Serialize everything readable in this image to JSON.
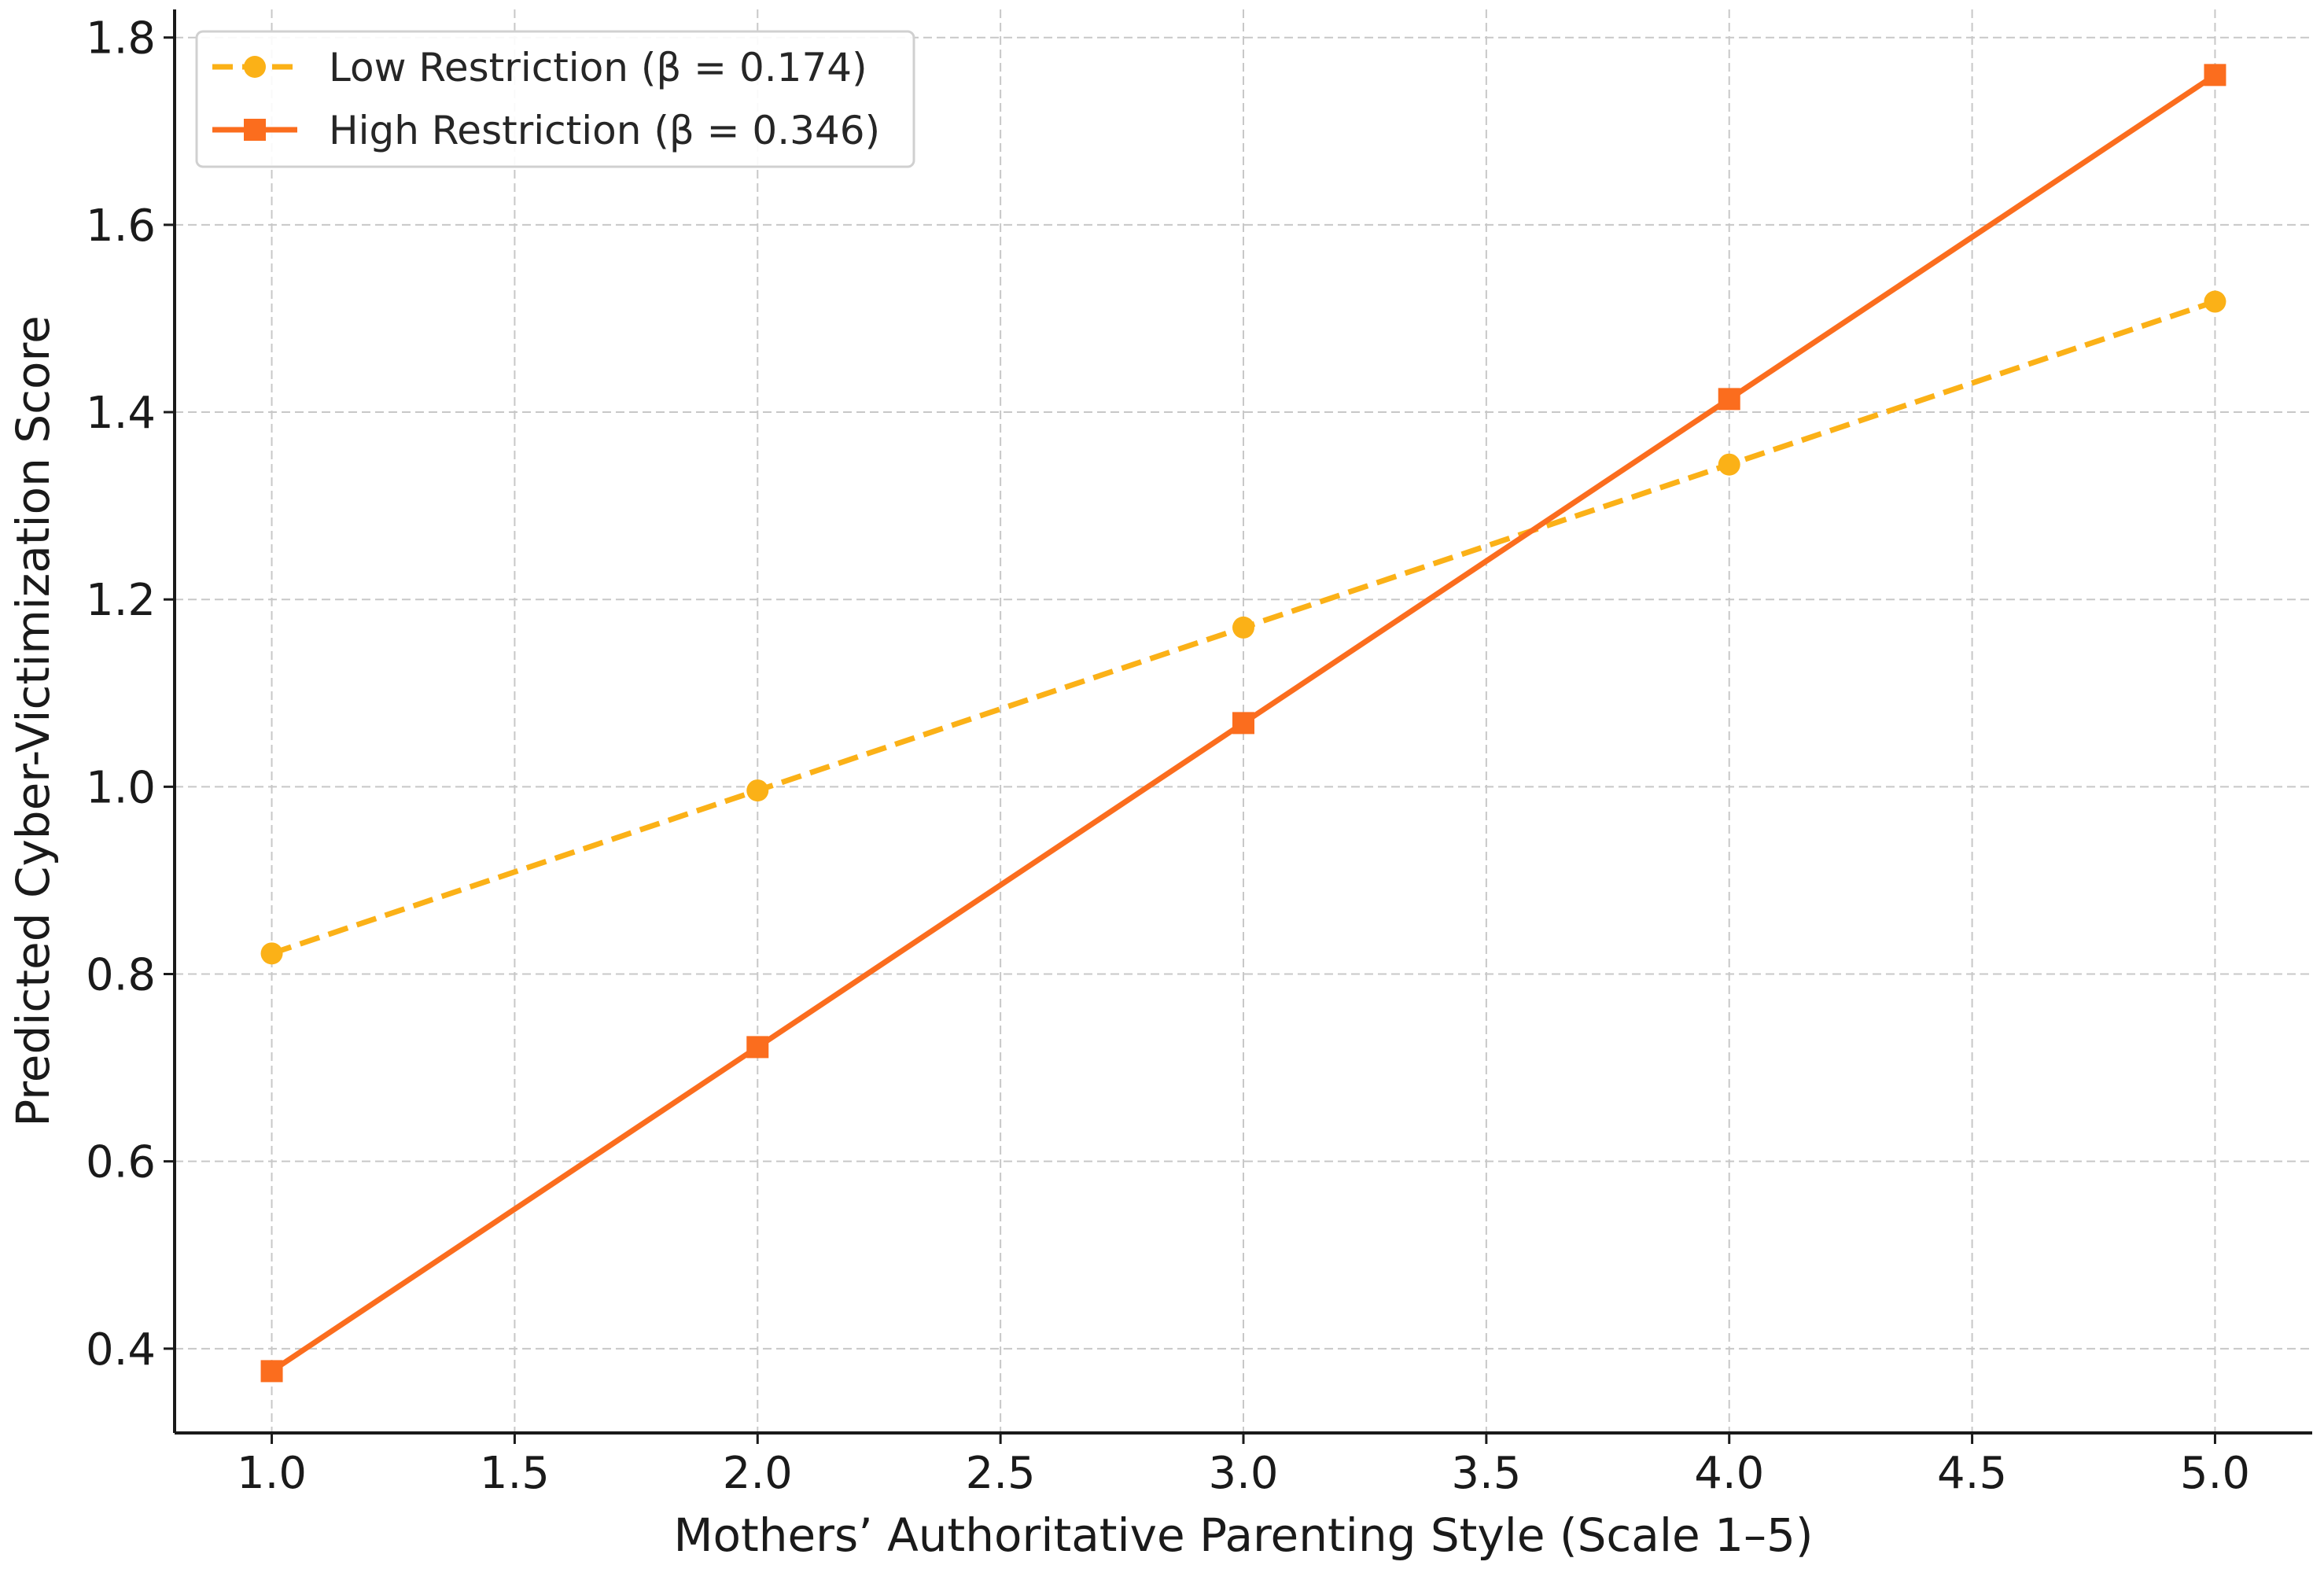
{
  "chart_data": {
    "type": "line",
    "title": "",
    "xlabel": "Mothers’ Authoritative Parenting Style (Scale 1–5)",
    "ylabel": "Predicted Cyber-Victimization Score",
    "xlim": [
      0.8,
      5.2
    ],
    "ylim": [
      0.31,
      1.83
    ],
    "x_ticks": [
      1.0,
      1.5,
      2.0,
      2.5,
      3.0,
      3.5,
      4.0,
      4.5,
      5.0
    ],
    "x_tick_labels": [
      "1.0",
      "1.5",
      "2.0",
      "2.5",
      "3.0",
      "3.5",
      "4.0",
      "4.5",
      "5.0"
    ],
    "y_ticks": [
      0.4,
      0.6,
      0.8,
      1.0,
      1.2,
      1.4,
      1.6,
      1.8
    ],
    "y_tick_labels": [
      "0.4",
      "0.6",
      "0.8",
      "1.0",
      "1.2",
      "1.4",
      "1.6",
      "1.8"
    ],
    "grid": true,
    "legend_position": "top-left",
    "x": [
      1,
      2,
      3,
      4,
      5
    ],
    "series": [
      {
        "name": "Low Restriction (β = 0.174)",
        "values": [
          0.822,
          0.996,
          1.17,
          1.344,
          1.518
        ],
        "color": "#fbb117",
        "line_style": "dashed",
        "marker": "circle"
      },
      {
        "name": "High Restriction (β = 0.346)",
        "values": [
          0.376,
          0.722,
          1.068,
          1.414,
          1.76
        ],
        "color": "#fb6d1e",
        "line_style": "solid",
        "marker": "square"
      }
    ]
  }
}
